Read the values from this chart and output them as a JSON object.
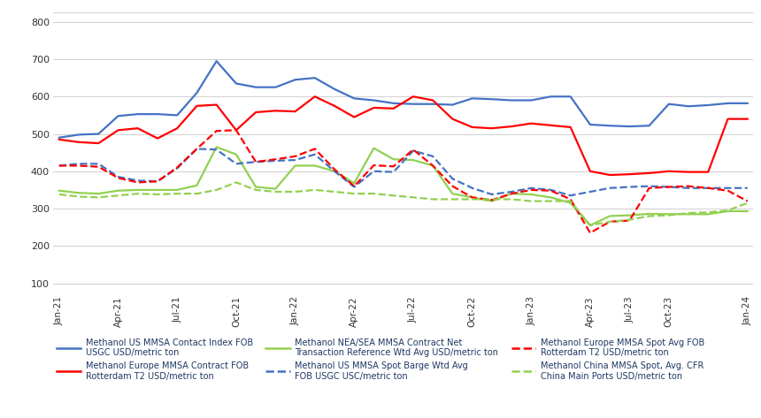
{
  "background_color": "#ffffff",
  "grid_color": "#d0d0d0",
  "x_labels": [
    "Jan-21",
    "Apr-21",
    "Jul-21",
    "Oct-21",
    "Jan-22",
    "Apr-22",
    "Jul-22",
    "Oct-22",
    "Jan-23",
    "Apr-23",
    "Jul-23",
    "Oct-23",
    "Jan-24"
  ],
  "y_ticks": [
    100,
    200,
    300,
    400,
    500,
    600,
    700,
    800
  ],
  "ylim": [
    75,
    825
  ],
  "tick_positions": [
    0,
    3,
    6,
    9,
    12,
    15,
    18,
    21,
    24,
    27,
    29,
    31,
    35
  ],
  "n_points": 36,
  "series": {
    "us_contract": {
      "color": "#4472C4",
      "style": "solid",
      "linewidth": 1.6,
      "values": [
        490,
        498,
        500,
        548,
        553,
        553,
        550,
        610,
        695,
        635,
        625,
        625,
        645,
        650,
        620,
        595,
        590,
        582,
        580,
        580,
        578,
        595,
        593,
        590,
        590,
        600,
        600,
        525,
        522,
        520,
        522,
        580,
        574,
        577,
        582,
        582
      ]
    },
    "eu_contract": {
      "color": "#FF0000",
      "style": "solid",
      "linewidth": 1.6,
      "values": [
        485,
        478,
        475,
        510,
        515,
        488,
        515,
        575,
        578,
        510,
        558,
        562,
        560,
        600,
        575,
        545,
        570,
        568,
        600,
        590,
        540,
        518,
        515,
        520,
        528,
        523,
        518,
        400,
        390,
        392,
        395,
        400,
        398,
        398,
        540,
        540
      ]
    },
    "nea_contract": {
      "color": "#92D050",
      "style": "solid",
      "linewidth": 1.6,
      "values": [
        348,
        342,
        340,
        348,
        350,
        350,
        350,
        362,
        465,
        445,
        358,
        353,
        415,
        415,
        400,
        368,
        462,
        432,
        430,
        415,
        340,
        330,
        320,
        340,
        338,
        330,
        315,
        255,
        280,
        282,
        286,
        285,
        285,
        285,
        293,
        293
      ]
    },
    "us_spot": {
      "color": "#4472C4",
      "style": "dashed",
      "linewidth": 1.6,
      "values": [
        415,
        420,
        420,
        385,
        375,
        373,
        408,
        460,
        458,
        420,
        425,
        428,
        430,
        445,
        400,
        358,
        400,
        398,
        455,
        440,
        380,
        355,
        338,
        345,
        355,
        350,
        335,
        345,
        355,
        358,
        360,
        358,
        355,
        355,
        355,
        355
      ]
    },
    "eu_spot": {
      "color": "#FF0000",
      "style": "dashed",
      "linewidth": 1.6,
      "values": [
        415,
        415,
        412,
        382,
        370,
        373,
        410,
        460,
        508,
        510,
        425,
        432,
        440,
        460,
        405,
        360,
        416,
        413,
        458,
        415,
        360,
        330,
        323,
        340,
        350,
        348,
        325,
        235,
        265,
        268,
        355,
        358,
        360,
        355,
        348,
        320
      ]
    },
    "china_spot": {
      "color": "#92D050",
      "style": "dashed",
      "linewidth": 1.6,
      "values": [
        338,
        332,
        330,
        335,
        340,
        338,
        340,
        340,
        350,
        370,
        350,
        345,
        345,
        350,
        345,
        340,
        340,
        335,
        330,
        325,
        325,
        325,
        325,
        325,
        320,
        320,
        320,
        255,
        265,
        270,
        280,
        282,
        288,
        290,
        295,
        315
      ]
    }
  },
  "legend": [
    {
      "color": "#4472C4",
      "style": "solid",
      "label": "Methanol US MMSA Contact Index FOB\nUSGC USD/metric ton"
    },
    {
      "color": "#FF0000",
      "style": "solid",
      "label": "Methanol Europe MMSA Contract FOB\nRotterdam T2 USD/metric ton"
    },
    {
      "color": "#92D050",
      "style": "solid",
      "label": "Methanol NEA/SEA MMSA Contract Net\nTransaction Reference Wtd Avg USD/metric ton"
    },
    {
      "color": "#4472C4",
      "style": "dashed",
      "label": "Methanol US MMSA Spot Barge Wtd Avg\nFOB USGC USC/metric ton"
    },
    {
      "color": "#FF0000",
      "style": "dashed",
      "label": "Methanol Europe MMSA Spot Avg FOB\nRotterdam T2 USD/metric ton"
    },
    {
      "color": "#92D050",
      "style": "dashed",
      "label": "Methanol China MMSA Spot, Avg. CFR\nChina Main Ports USD/metric ton"
    }
  ]
}
